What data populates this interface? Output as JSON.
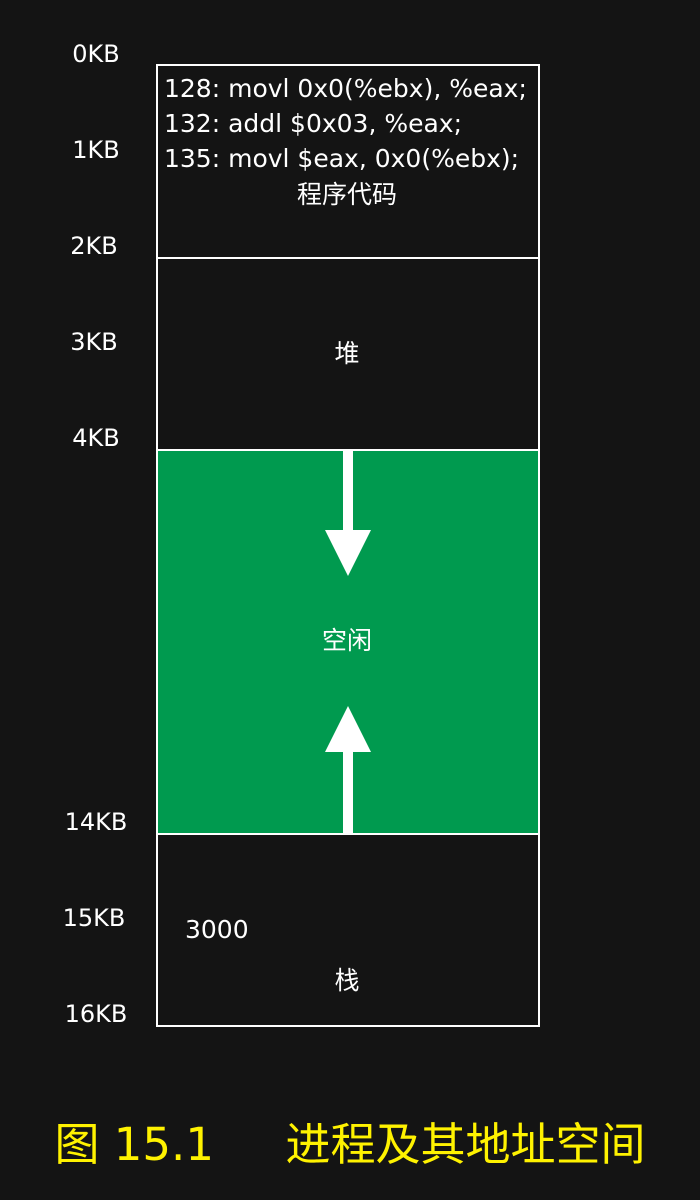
{
  "address_labels": [
    "0KB",
    "1KB",
    "2KB",
    "3KB",
    "4KB",
    "14KB",
    "15KB",
    "16KB"
  ],
  "segments": {
    "code": {
      "lines": [
        "128: movl 0x0(%ebx), %eax;",
        "132: addl $0x03, %eax;",
        "135: movl $eax, 0x0(%ebx);"
      ],
      "label": "程序代码"
    },
    "heap": {
      "label": "堆"
    },
    "free": {
      "label": "空闲"
    },
    "stack": {
      "label": "栈",
      "value": "3000"
    }
  },
  "caption": "图 15.1     进程及其地址空间",
  "colors": {
    "background": "#141414",
    "free_fill": "#009a4f",
    "caption": "#fff200"
  }
}
